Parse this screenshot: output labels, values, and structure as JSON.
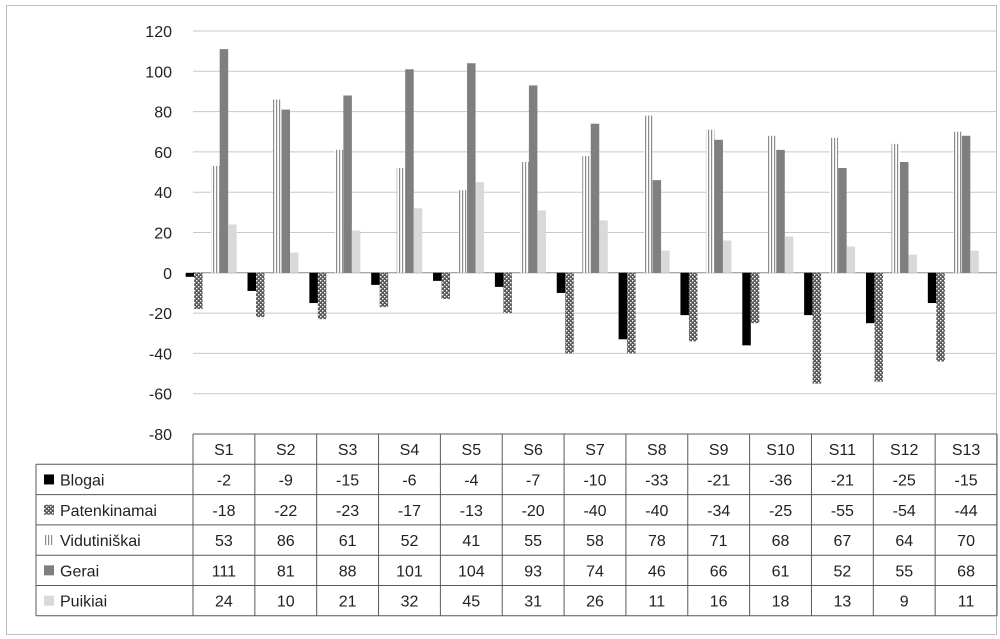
{
  "chart_data": {
    "type": "bar",
    "title": "",
    "xlabel": "",
    "ylabel": "",
    "ylim": [
      -80,
      120
    ],
    "yticks": [
      120,
      100,
      80,
      60,
      40,
      20,
      0,
      -20,
      -40,
      -60,
      -80
    ],
    "grid": true,
    "legend_placement": "data table left column",
    "categories": [
      "S1",
      "S2",
      "S3",
      "S4",
      "S5",
      "S6",
      "S7",
      "S8",
      "S9",
      "S10",
      "S11",
      "S12",
      "S13"
    ],
    "series": [
      {
        "name": "Blogai",
        "color": "#000000",
        "pattern": "solid",
        "values": [
          -2,
          -9,
          -15,
          -6,
          -4,
          -7,
          -10,
          -33,
          -21,
          -36,
          -21,
          -25,
          -15
        ]
      },
      {
        "name": "Patenkinamai",
        "color": "#595959",
        "pattern": "dots",
        "values": [
          -18,
          -22,
          -23,
          -17,
          -13,
          -20,
          -40,
          -40,
          -34,
          -25,
          -55,
          -54,
          -44
        ]
      },
      {
        "name": "Vidutiniškai",
        "color": "#9a9a9a",
        "pattern": "vertical-lines",
        "values": [
          53,
          86,
          61,
          52,
          41,
          55,
          58,
          78,
          71,
          68,
          67,
          64,
          70
        ]
      },
      {
        "name": "Gerai",
        "color": "#7f7f7f",
        "pattern": "solid",
        "values": [
          111,
          81,
          88,
          101,
          104,
          93,
          74,
          46,
          66,
          61,
          52,
          55,
          68
        ]
      },
      {
        "name": "Puikiai",
        "color": "#d9d9d9",
        "pattern": "solid",
        "values": [
          24,
          10,
          21,
          32,
          45,
          31,
          26,
          11,
          16,
          18,
          13,
          9,
          11
        ]
      }
    ]
  }
}
